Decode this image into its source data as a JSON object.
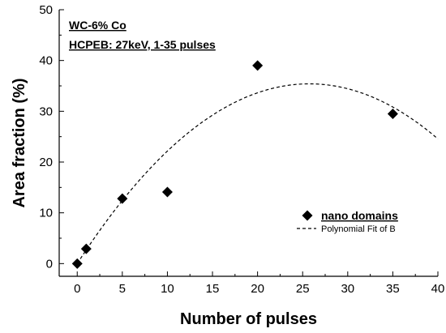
{
  "chart_data": {
    "type": "scatter",
    "xlabel": "Number of pulses",
    "ylabel": "Area fraction (%)",
    "xlim": [
      -2,
      40
    ],
    "ylim": [
      -2.5,
      50
    ],
    "x_ticks": [
      0,
      5,
      10,
      15,
      20,
      25,
      30,
      35,
      40
    ],
    "y_ticks": [
      0,
      10,
      20,
      30,
      40,
      50
    ],
    "grid": false,
    "legend_position": "right",
    "annotations": [
      "WC-6% Co",
      "HCPEB: 27keV, 1-35 pulses"
    ],
    "series": [
      {
        "name": "nano domains",
        "marker": "diamond",
        "points": [
          {
            "x": 0,
            "y": 0
          },
          {
            "x": 1,
            "y": 2.9
          },
          {
            "x": 5,
            "y": 12.8
          },
          {
            "x": 10,
            "y": 14.1
          },
          {
            "x": 20,
            "y": 39
          },
          {
            "x": 35,
            "y": 29.5
          }
        ]
      },
      {
        "name": "Polynomial Fit of B",
        "line_style": "dashed",
        "fit_coefficients": [
          0,
          2.75,
          -0.0534
        ],
        "x_range": [
          0,
          40
        ]
      }
    ]
  }
}
